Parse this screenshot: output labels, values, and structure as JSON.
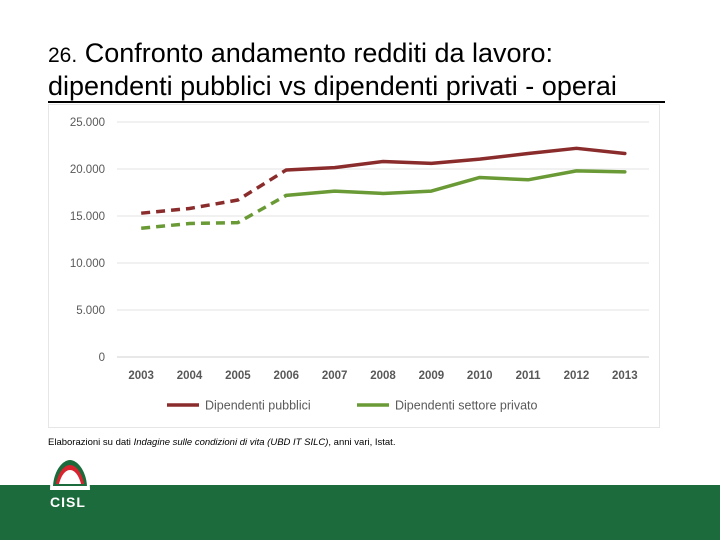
{
  "slide": {
    "title_number": "26.",
    "title_line1": "Confronto andamento redditi da lavoro:",
    "title_line2": "dipendenti pubblici vs dipendenti privati - operai"
  },
  "source": {
    "prefix": "Elaborazioni su dati ",
    "italic": "Indagine sulle condizioni di vita (UBD IT SILC)",
    "suffix": ", anni vari, Istat."
  },
  "logo": {
    "text": "CISL"
  },
  "colors": {
    "pubblici": "#8b2c2c",
    "privato": "#6a9a35",
    "footer": "#1b6b3c"
  },
  "chart_data": {
    "type": "line",
    "title": "",
    "xlabel": "",
    "ylabel": "",
    "categories": [
      "2003",
      "2004",
      "2005",
      "2006",
      "2007",
      "2008",
      "2009",
      "2010",
      "2011",
      "2012",
      "2013"
    ],
    "ylim": [
      0,
      25000
    ],
    "yticks": [
      0,
      5000,
      10000,
      15000,
      20000,
      25000
    ],
    "ytick_labels": [
      "0",
      "5.000",
      "10.000",
      "15.000",
      "20.000",
      "25.000"
    ],
    "grid": true,
    "legend_position": "bottom",
    "dashed_until_index": 3,
    "series": [
      {
        "name": "Dipendenti pubblici",
        "color": "#8b2c2c",
        "values": [
          15300,
          15800,
          16700,
          19900,
          20150,
          20800,
          20600,
          21050,
          21650,
          22200,
          21650
        ]
      },
      {
        "name": "Dipendenti settore privato",
        "color": "#6a9a35",
        "values": [
          13700,
          14200,
          14300,
          17200,
          17650,
          17400,
          17650,
          19100,
          18850,
          19800,
          19700
        ]
      }
    ]
  }
}
